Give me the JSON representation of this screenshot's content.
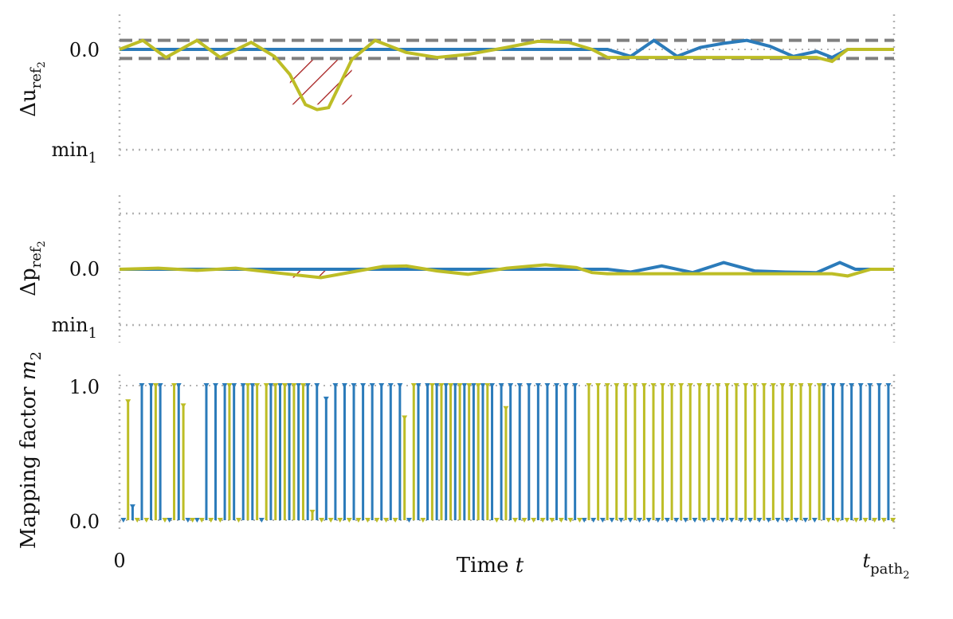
{
  "colors": {
    "blue": "#2b7bba",
    "olive": "#bdbd26",
    "dashed_band": "#7f7f7f",
    "hatch": "#a31515",
    "dotted_ref": "#b3b3b3"
  },
  "labels": {
    "p1_ylabel": {
      "main": "Δu",
      "sub": "ref",
      "subsub": "2"
    },
    "p2_ylabel": {
      "main": "Δp",
      "sub": "ref",
      "subsub": "2"
    },
    "p3_ylabel": {
      "main": "Mapping factor ",
      "italic": "m",
      "sub": "2"
    },
    "p1_tick_zero": "0.0",
    "p1_tick_min": {
      "main": "min",
      "sub": "1"
    },
    "p2_tick_zero": "0.0",
    "p2_tick_min": {
      "main": "min",
      "sub": "1"
    },
    "p3_tick_one": "1.0",
    "p3_tick_zero": "0.0",
    "x_tick_start": "0",
    "x_tick_end": {
      "main": "t",
      "sub": "path",
      "subsub": "2"
    },
    "xlabel": {
      "main": "Time ",
      "italic": "t"
    }
  },
  "chart_data": [
    {
      "type": "line",
      "x_domain": [
        0,
        1
      ],
      "ylim": [
        -1.0,
        0.12
      ],
      "y_ticks": [
        0,
        -1.0
      ],
      "band": [
        -0.09,
        0.09
      ],
      "hatch_range": [
        0.22,
        0.3
      ],
      "series": [
        {
          "color_key": "blue",
          "x": [
            0,
            0.1,
            0.2,
            0.3,
            0.4,
            0.5,
            0.6,
            0.63,
            0.66,
            0.69,
            0.72,
            0.75,
            0.78,
            0.81,
            0.84,
            0.87,
            0.9,
            0.92,
            0.94,
            0.97,
            1.0
          ],
          "y": [
            0,
            0,
            0,
            0,
            0,
            0,
            0,
            0,
            -0.07,
            0.09,
            -0.07,
            0.02,
            0.06,
            0.09,
            0.03,
            -0.07,
            -0.02,
            -0.08,
            0.0,
            0.0,
            0.0
          ]
        },
        {
          "color_key": "olive",
          "x": [
            0,
            0.03,
            0.06,
            0.1,
            0.13,
            0.17,
            0.2,
            0.22,
            0.24,
            0.255,
            0.27,
            0.3,
            0.33,
            0.37,
            0.41,
            0.45,
            0.5,
            0.54,
            0.58,
            0.61,
            0.63,
            0.66,
            0.7,
            0.75,
            0.8,
            0.85,
            0.88,
            0.9,
            0.92,
            0.94,
            0.97,
            1.0
          ],
          "y": [
            0,
            0.09,
            -0.08,
            0.09,
            -0.08,
            0.07,
            -0.07,
            -0.25,
            -0.55,
            -0.6,
            -0.58,
            -0.1,
            0.09,
            -0.03,
            -0.08,
            -0.05,
            0.02,
            0.08,
            0.07,
            0.0,
            -0.08,
            -0.08,
            -0.08,
            -0.08,
            -0.08,
            -0.08,
            -0.08,
            -0.08,
            -0.12,
            0.0,
            0.0,
            0.0
          ]
        }
      ]
    },
    {
      "type": "line",
      "x_domain": [
        0,
        1
      ],
      "ylim": [
        -1.0,
        1.0
      ],
      "y_ticks": [
        0,
        -1.0
      ],
      "dotted_top": 0.97,
      "hatch_range": [
        0.22,
        0.28
      ],
      "series": [
        {
          "color_key": "blue",
          "x": [
            0,
            0.1,
            0.2,
            0.3,
            0.4,
            0.5,
            0.6,
            0.63,
            0.66,
            0.7,
            0.74,
            0.78,
            0.82,
            0.86,
            0.9,
            0.93,
            0.95,
            0.97,
            1.0
          ],
          "y": [
            0,
            0,
            0,
            0,
            0,
            0,
            0,
            0,
            -0.05,
            0.06,
            -0.06,
            0.12,
            -0.03,
            -0.05,
            -0.06,
            0.12,
            0.0,
            0.0,
            0.0
          ]
        },
        {
          "color_key": "olive",
          "x": [
            0,
            0.05,
            0.1,
            0.15,
            0.2,
            0.26,
            0.3,
            0.34,
            0.37,
            0.41,
            0.45,
            0.5,
            0.55,
            0.59,
            0.61,
            0.63,
            0.66,
            0.7,
            0.75,
            0.8,
            0.85,
            0.88,
            0.92,
            0.94,
            0.97,
            1.0
          ],
          "y": [
            0,
            0.02,
            -0.02,
            0.02,
            -0.06,
            -0.15,
            -0.05,
            0.05,
            0.06,
            -0.03,
            -0.09,
            0.02,
            0.08,
            0.03,
            -0.06,
            -0.08,
            -0.08,
            -0.08,
            -0.08,
            -0.08,
            -0.08,
            -0.08,
            -0.08,
            -0.12,
            0.0,
            0.0
          ]
        }
      ]
    },
    {
      "type": "stem",
      "x_domain": [
        0,
        1
      ],
      "ylim": [
        0,
        1.0
      ],
      "y_ticks": [
        0,
        1.0
      ],
      "stem_count": 84,
      "series": [
        {
          "color_key": "blue",
          "x": [
            0.005,
            0.0169,
            0.0288,
            0.0407,
            0.0526,
            0.0645,
            0.0764,
            0.0883,
            0.1002,
            0.1121,
            0.124,
            0.1359,
            0.1478,
            0.1597,
            0.1716,
            0.1835,
            0.1954,
            0.2073,
            0.2192,
            0.2311,
            0.243,
            0.2549,
            0.2668,
            0.2787,
            0.2906,
            0.3025,
            0.3144,
            0.3263,
            0.3382,
            0.3501,
            0.362,
            0.3739,
            0.3858,
            0.3977,
            0.4096,
            0.4215,
            0.4334,
            0.4453,
            0.4572,
            0.4691,
            0.481,
            0.4929,
            0.5048,
            0.5167,
            0.5286,
            0.5405,
            0.5524,
            0.5643,
            0.5762,
            0.5881,
            0.6,
            0.6119,
            0.6238,
            0.6357,
            0.6476,
            0.6595,
            0.6714,
            0.6833,
            0.6952,
            0.7071,
            0.719,
            0.7309,
            0.7428,
            0.7547,
            0.7666,
            0.7785,
            0.7904,
            0.8023,
            0.8142,
            0.8261,
            0.838,
            0.8499,
            0.8618,
            0.8737,
            0.8856,
            0.8975,
            0.9094,
            0.9213,
            0.9332,
            0.9451,
            0.957,
            0.9689,
            0.9808,
            0.9927
          ],
          "values": [
            0.0,
            0.1,
            1.0,
            1.0,
            1.0,
            0.0,
            1.0,
            0.0,
            0.0,
            1.0,
            1.0,
            1.0,
            1.0,
            1.0,
            1.0,
            0.0,
            1.0,
            1.0,
            1.0,
            1.0,
            1.0,
            1.0,
            0.9,
            1.0,
            1.0,
            1.0,
            1.0,
            1.0,
            1.0,
            1.0,
            1.0,
            0.0,
            1.0,
            1.0,
            1.0,
            1.0,
            1.0,
            1.0,
            1.0,
            1.0,
            1.0,
            1.0,
            1.0,
            1.0,
            1.0,
            1.0,
            1.0,
            1.0,
            1.0,
            1.0,
            0.0,
            0.0,
            0.0,
            0.0,
            0.0,
            0.0,
            0.0,
            0.0,
            0.0,
            0.0,
            0.0,
            0.0,
            0.0,
            0.0,
            0.0,
            0.0,
            0.0,
            0.0,
            0.0,
            0.0,
            0.0,
            0.0,
            0.0,
            0.0,
            0.0,
            0.0,
            1.0,
            1.0,
            1.0,
            1.0,
            1.0,
            1.0,
            1.0,
            1.0
          ]
        },
        {
          "color_key": "olive",
          "x": [
            0.011,
            0.0229,
            0.0348,
            0.0467,
            0.0586,
            0.0705,
            0.0824,
            0.0943,
            0.1062,
            0.1181,
            0.13,
            0.1419,
            0.1538,
            0.1657,
            0.1776,
            0.1895,
            0.2014,
            0.2133,
            0.2252,
            0.2371,
            0.249,
            0.2609,
            0.2728,
            0.2847,
            0.2966,
            0.3085,
            0.3204,
            0.3323,
            0.3442,
            0.3561,
            0.368,
            0.3799,
            0.3918,
            0.4037,
            0.4156,
            0.4275,
            0.4394,
            0.4513,
            0.4632,
            0.4751,
            0.487,
            0.4989,
            0.5108,
            0.5227,
            0.5346,
            0.5465,
            0.5584,
            0.5703,
            0.5822,
            0.5941,
            0.606,
            0.6179,
            0.6298,
            0.6417,
            0.6536,
            0.6655,
            0.6774,
            0.6893,
            0.7012,
            0.7131,
            0.725,
            0.7369,
            0.7488,
            0.7607,
            0.7726,
            0.7845,
            0.7964,
            0.8083,
            0.8202,
            0.8321,
            0.844,
            0.8559,
            0.8678,
            0.8797,
            0.8916,
            0.9035,
            0.9154,
            0.9273,
            0.9392,
            0.9511,
            0.963,
            0.9749,
            0.9868,
            0.9987
          ],
          "values": [
            0.88,
            0.0,
            0.0,
            1.0,
            0.0,
            1.0,
            0.85,
            0.0,
            0.0,
            0.0,
            0.0,
            1.0,
            0.0,
            1.0,
            1.0,
            1.0,
            1.0,
            1.0,
            1.0,
            1.0,
            0.06,
            0.0,
            0.0,
            0.0,
            0.0,
            0.0,
            0.0,
            0.0,
            0.0,
            0.0,
            0.76,
            1.0,
            0.0,
            1.0,
            1.0,
            1.0,
            1.0,
            1.0,
            1.0,
            1.0,
            0.0,
            0.83,
            0.0,
            0.0,
            0.0,
            0.0,
            0.0,
            0.0,
            0.0,
            0.0,
            1.0,
            1.0,
            1.0,
            1.0,
            1.0,
            1.0,
            1.0,
            1.0,
            1.0,
            1.0,
            1.0,
            1.0,
            1.0,
            1.0,
            1.0,
            1.0,
            1.0,
            1.0,
            1.0,
            1.0,
            1.0,
            1.0,
            1.0,
            1.0,
            1.0,
            1.0,
            0.0,
            0.0,
            0.0,
            0.0,
            0.0,
            0.0,
            0.0,
            0.0
          ]
        }
      ]
    }
  ]
}
